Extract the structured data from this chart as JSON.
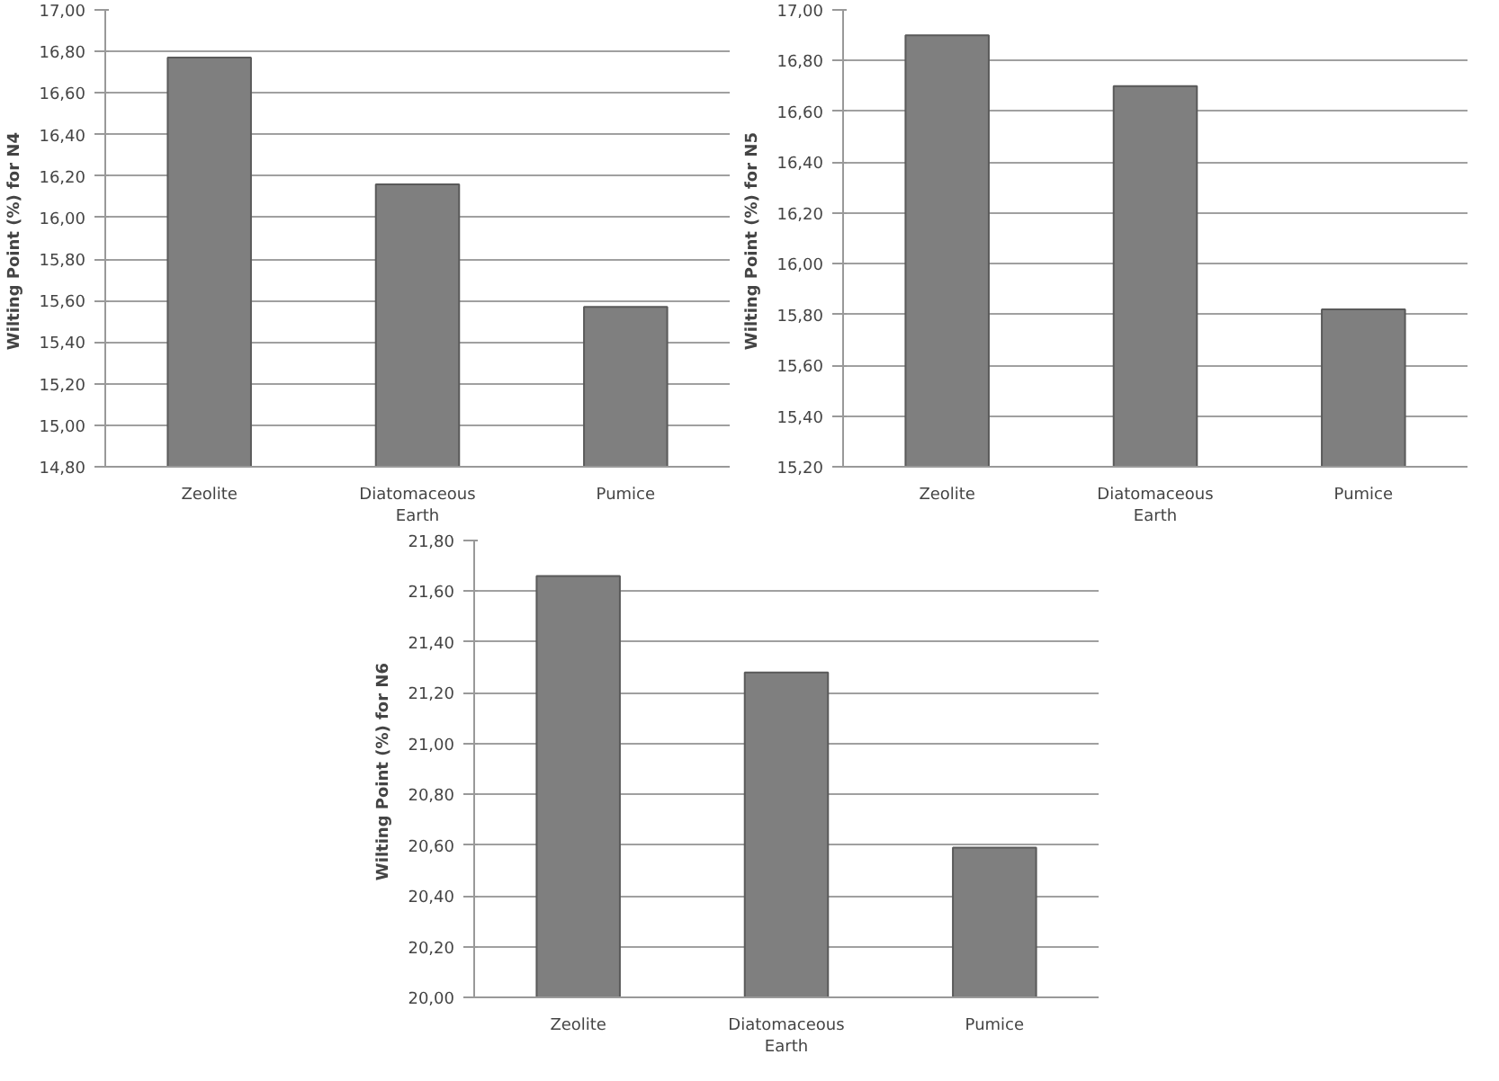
{
  "chart_data": [
    {
      "type": "bar",
      "ylabel": "Wilting Point  (%) for N4",
      "categories": [
        "Zeolite",
        "Diatomaceous\nEarth",
        "Pumice"
      ],
      "values": [
        16.77,
        16.16,
        15.57
      ],
      "color": "#7f7f7f",
      "grid": "y",
      "ylim": [
        14.8,
        17.0
      ],
      "yticks": [
        {
          "value": 14.8,
          "label": "14,80"
        },
        {
          "value": 15.0,
          "label": "15,00"
        },
        {
          "value": 15.2,
          "label": "15,20"
        },
        {
          "value": 15.4,
          "label": "15,40"
        },
        {
          "value": 15.6,
          "label": "15,60"
        },
        {
          "value": 15.8,
          "label": "15,80"
        },
        {
          "value": 16.0,
          "label": "16,00"
        },
        {
          "value": 16.2,
          "label": "16,20"
        },
        {
          "value": 16.4,
          "label": "16,40"
        },
        {
          "value": 16.6,
          "label": "16,60"
        },
        {
          "value": 16.8,
          "label": "16,80"
        },
        {
          "value": 17.0,
          "label": "17,00"
        }
      ]
    },
    {
      "type": "bar",
      "ylabel": "Wilting Point  (%) for N5",
      "categories": [
        "Zeolite",
        "Diatomaceous\nEarth",
        "Pumice"
      ],
      "values": [
        16.9,
        16.7,
        15.82
      ],
      "color": "#7f7f7f",
      "grid": "y",
      "ylim": [
        15.2,
        17.0
      ],
      "yticks": [
        {
          "value": 15.2,
          "label": "15,20"
        },
        {
          "value": 15.4,
          "label": "15,40"
        },
        {
          "value": 15.6,
          "label": "15,60"
        },
        {
          "value": 15.8,
          "label": "15,80"
        },
        {
          "value": 16.0,
          "label": "16,00"
        },
        {
          "value": 16.2,
          "label": "16,20"
        },
        {
          "value": 16.4,
          "label": "16,40"
        },
        {
          "value": 16.6,
          "label": "16,60"
        },
        {
          "value": 16.8,
          "label": "16,80"
        },
        {
          "value": 17.0,
          "label": "17,00"
        }
      ]
    },
    {
      "type": "bar",
      "ylabel": "Wilting Point  (%) for N6",
      "categories": [
        "Zeolite",
        "Diatomaceous\nEarth",
        "Pumice"
      ],
      "values": [
        21.66,
        21.28,
        20.59
      ],
      "color": "#7f7f7f",
      "grid": "y",
      "ylim": [
        20.0,
        21.8
      ],
      "yticks": [
        {
          "value": 20.0,
          "label": "20,00"
        },
        {
          "value": 20.2,
          "label": "20,20"
        },
        {
          "value": 20.4,
          "label": "20,40"
        },
        {
          "value": 20.6,
          "label": "20,60"
        },
        {
          "value": 20.8,
          "label": "20,80"
        },
        {
          "value": 21.0,
          "label": "21,00"
        },
        {
          "value": 21.2,
          "label": "21,20"
        },
        {
          "value": 21.4,
          "label": "21,40"
        },
        {
          "value": 21.6,
          "label": "21,60"
        },
        {
          "value": 21.8,
          "label": "21,80"
        }
      ]
    }
  ]
}
